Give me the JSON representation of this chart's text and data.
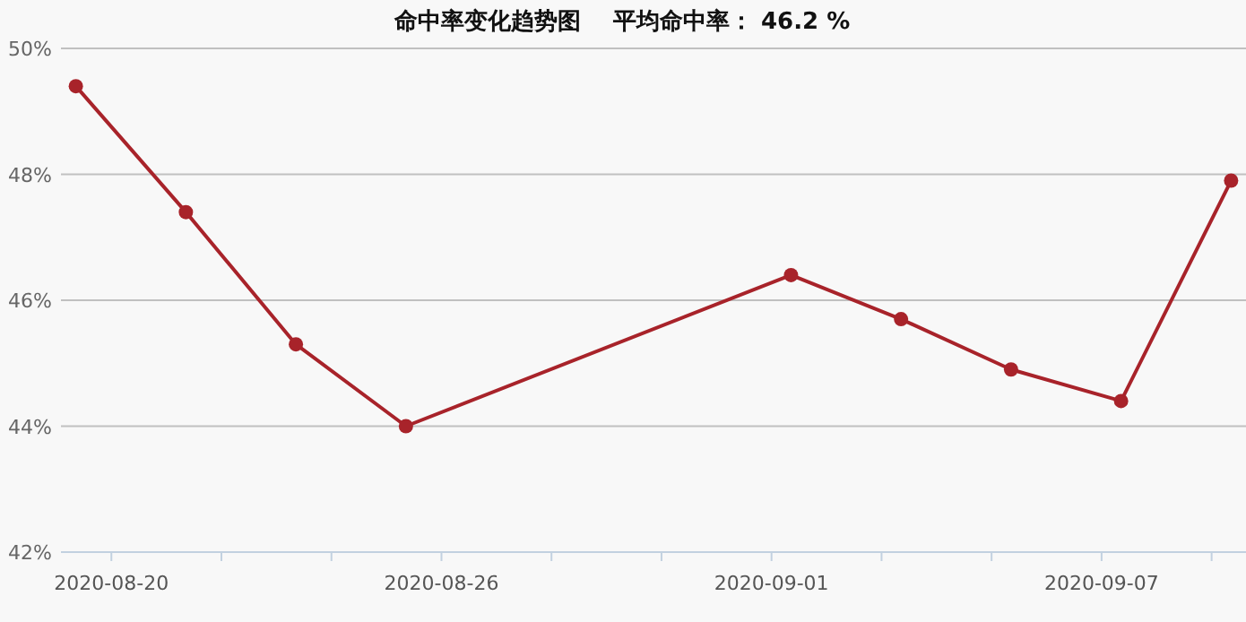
{
  "chart_data": {
    "type": "line",
    "title": "命中率变化趋势图    平均命中率： 46.2 %",
    "x": [
      "2020-08-19T08:30",
      "2020-08-21T08:30",
      "2020-08-23T08:30",
      "2020-08-25T08:30",
      "2020-09-01T08:30",
      "2020-09-03T08:30",
      "2020-09-05T08:30",
      "2020-09-07T08:30",
      "2020-09-09T08:30"
    ],
    "series": [
      {
        "color": "#a8232a",
        "values": [
          49.4,
          47.4,
          45.3,
          44.0,
          46.4,
          45.7,
          44.9,
          44.4,
          47.9
        ]
      }
    ],
    "xlim": [
      "2020-08-19T02:00",
      "2020-09-09T15:00"
    ],
    "xticks": [
      {
        "value": "2020-08-20",
        "label": "2020-08-20"
      },
      {
        "value": "2020-08-22",
        "label": null
      },
      {
        "value": "2020-08-24",
        "label": null
      },
      {
        "value": "2020-08-26",
        "label": "2020-08-26"
      },
      {
        "value": "2020-08-28",
        "label": null
      },
      {
        "value": "2020-08-30",
        "label": null
      },
      {
        "value": "2020-09-01",
        "label": "2020-09-01"
      },
      {
        "value": "2020-09-03",
        "label": null
      },
      {
        "value": "2020-09-05",
        "label": null
      },
      {
        "value": "2020-09-07",
        "label": "2020-09-07"
      },
      {
        "value": "2020-09-09",
        "label": null
      }
    ],
    "ylim": [
      42,
      50
    ],
    "yticks": [
      {
        "value": 42,
        "label": "42%"
      },
      {
        "value": 44,
        "label": "44%"
      },
      {
        "value": 46,
        "label": "46%"
      },
      {
        "value": 48,
        "label": "48%"
      },
      {
        "value": 50,
        "label": "50%"
      }
    ],
    "grid": "y",
    "marker": "circle",
    "line_style": "solid"
  }
}
